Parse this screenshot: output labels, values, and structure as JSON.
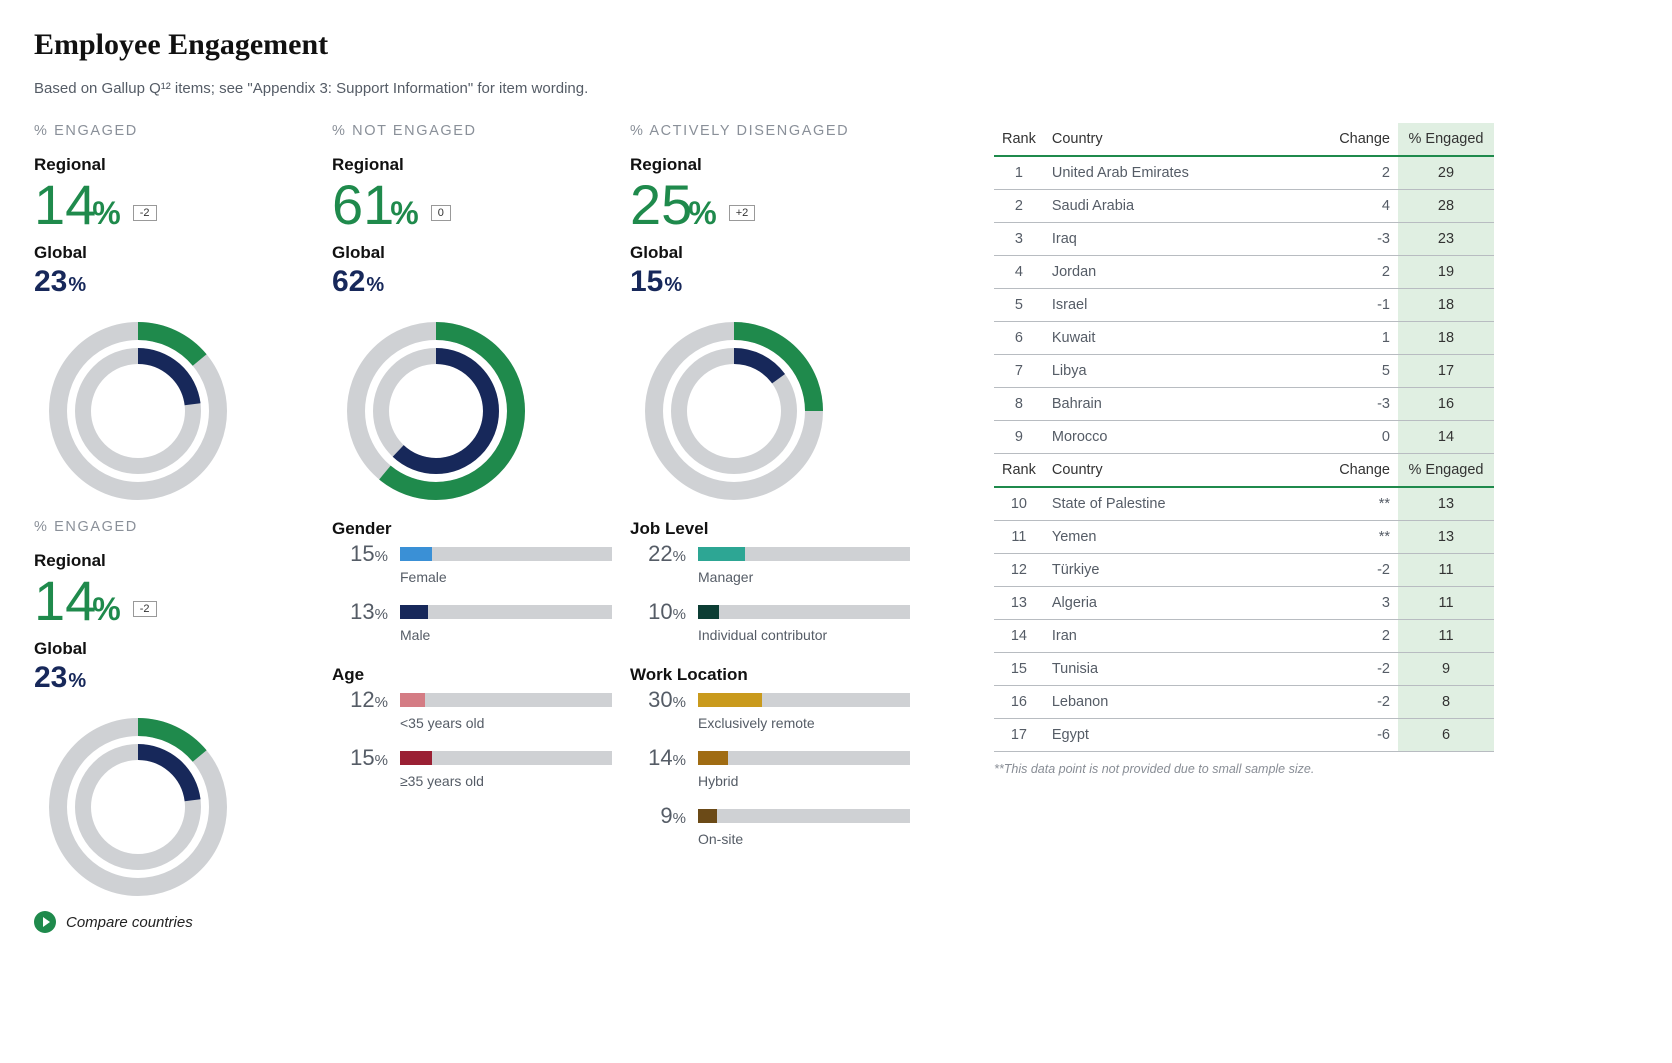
{
  "title": "Employee Engagement",
  "subtitle": "Based on Gallup Q¹² items; see \"Appendix 3: Support Information\" for item wording.",
  "colors": {
    "green": "#1f8a4c",
    "navy": "#17285a",
    "grey": "#cfd1d4",
    "track": "#cfd1d4",
    "bg": "#ffffff",
    "eng_cell_bg": "#e0efe2",
    "muted_text": "#555c66",
    "label_grey": "#8a9099"
  },
  "metrics": [
    {
      "key": "engaged",
      "label": "% ENGAGED",
      "regional": 14,
      "delta": "-2",
      "global": 23,
      "regional_color": "#1f8a4c",
      "global_color": "#17285a"
    },
    {
      "key": "not_engaged",
      "label": "% NOT ENGAGED",
      "regional": 61,
      "delta": "0",
      "global": 62,
      "regional_color": "#1f8a4c",
      "global_color": "#17285a"
    },
    {
      "key": "disengaged",
      "label": "% ACTIVELY DISENGAGED",
      "regional": 25,
      "delta": "+2",
      "global": 15,
      "regional_color": "#1f8a4c",
      "global_color": "#17285a"
    }
  ],
  "section2_label": "% ENGAGED",
  "regional_word": "Regional",
  "global_word": "Global",
  "percent_sign": "%",
  "breakdowns": {
    "gender": {
      "title": "Gender",
      "items": [
        {
          "pct": 15,
          "label": "Female",
          "color": "#3a90d6"
        },
        {
          "pct": 13,
          "label": "Male",
          "color": "#17285a"
        }
      ]
    },
    "age": {
      "title": "Age",
      "items": [
        {
          "pct": 12,
          "label": "<35 years old",
          "color": "#d47c84"
        },
        {
          "pct": 15,
          "label": "≥35 years old",
          "color": "#9a2034"
        }
      ]
    },
    "job_level": {
      "title": "Job Level",
      "items": [
        {
          "pct": 22,
          "label": "Manager",
          "color": "#2da694"
        },
        {
          "pct": 10,
          "label": "Individual contributor",
          "color": "#0c3d34"
        }
      ]
    },
    "work_location": {
      "title": "Work Location",
      "items": [
        {
          "pct": 30,
          "label": "Exclusively remote",
          "color": "#c99a1d"
        },
        {
          "pct": 14,
          "label": "Hybrid",
          "color": "#a06c13"
        },
        {
          "pct": 9,
          "label": "On-site",
          "color": "#6b4a17"
        }
      ]
    }
  },
  "compare_label": "Compare countries",
  "ranking": {
    "headers": {
      "rank": "Rank",
      "country": "Country",
      "change": "Change",
      "engaged": "% Engaged"
    },
    "top": [
      {
        "rank": 1,
        "country": "United Arab Emirates",
        "change": "2",
        "engaged": 29
      },
      {
        "rank": 2,
        "country": "Saudi Arabia",
        "change": "4",
        "engaged": 28
      },
      {
        "rank": 3,
        "country": "Iraq",
        "change": "-3",
        "engaged": 23
      },
      {
        "rank": 4,
        "country": "Jordan",
        "change": "2",
        "engaged": 19
      },
      {
        "rank": 5,
        "country": "Israel",
        "change": "-1",
        "engaged": 18
      },
      {
        "rank": 6,
        "country": "Kuwait",
        "change": "1",
        "engaged": 18
      },
      {
        "rank": 7,
        "country": "Libya",
        "change": "5",
        "engaged": 17
      },
      {
        "rank": 8,
        "country": "Bahrain",
        "change": "-3",
        "engaged": 16
      },
      {
        "rank": 9,
        "country": "Morocco",
        "change": "0",
        "engaged": 14
      }
    ],
    "bottom": [
      {
        "rank": 10,
        "country": "State of Palestine",
        "change": "**",
        "engaged": 13
      },
      {
        "rank": 11,
        "country": "Yemen",
        "change": "**",
        "engaged": 13
      },
      {
        "rank": 12,
        "country": "Türkiye",
        "change": "-2",
        "engaged": 11
      },
      {
        "rank": 13,
        "country": "Algeria",
        "change": "3",
        "engaged": 11
      },
      {
        "rank": 14,
        "country": "Iran",
        "change": "2",
        "engaged": 11
      },
      {
        "rank": 15,
        "country": "Tunisia",
        "change": "-2",
        "engaged": 9
      },
      {
        "rank": 16,
        "country": "Lebanon",
        "change": "-2",
        "engaged": 8
      },
      {
        "rank": 17,
        "country": "Egypt",
        "change": "-6",
        "engaged": 6
      }
    ],
    "note": "**This data point is not provided due to small sample size."
  },
  "donut_style": {
    "outer_r": 80,
    "outer_w": 18,
    "inner_r": 55,
    "inner_w": 16,
    "grey": "#cfd1d4"
  }
}
